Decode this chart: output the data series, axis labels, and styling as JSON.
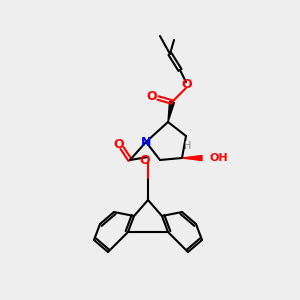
{
  "background_color": "#eeeeee",
  "bond_color": "#000000",
  "bond_width": 1.5,
  "atom_colors": {
    "O": "#ff0000",
    "N": "#0000ff",
    "C": "#000000",
    "H": "#888888"
  },
  "font_size": 8,
  "fig_size": [
    3.0,
    3.0
  ],
  "dpi": 100
}
